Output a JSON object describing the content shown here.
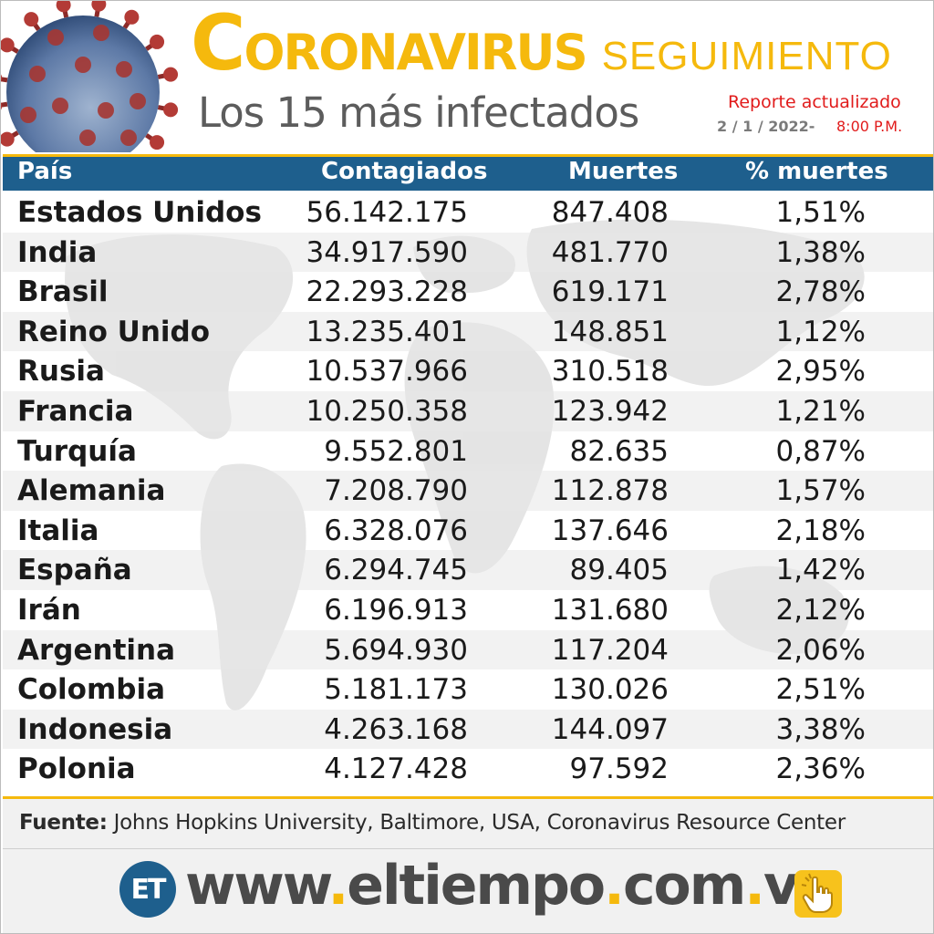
{
  "header": {
    "title_main": "CORONAVIRUS",
    "title_sub": "SEGUIMIENTO",
    "subtitle": "Los 15 más infectados",
    "report_label": "Reporte actualizado",
    "report_date": "2 / 1 / 2022-",
    "report_time": "8:00 P.M."
  },
  "table": {
    "columns": [
      "País",
      "Contagiados",
      "Muertes",
      "% muertes"
    ],
    "rows": [
      {
        "country": "Estados Unidos",
        "infected": "56.142.175",
        "deaths": "847.408",
        "pct": "1,51%"
      },
      {
        "country": "India",
        "infected": "34.917.590",
        "deaths": "481.770",
        "pct": "1,38%"
      },
      {
        "country": "Brasil",
        "infected": "22.293.228",
        "deaths": "619.171",
        "pct": "2,78%"
      },
      {
        "country": "Reino Unido",
        "infected": "13.235.401",
        "deaths": "148.851",
        "pct": "1,12%"
      },
      {
        "country": "Rusia",
        "infected": "10.537.966",
        "deaths": "310.518",
        "pct": "2,95%"
      },
      {
        "country": "Francia",
        "infected": "10.250.358",
        "deaths": "123.942",
        "pct": "1,21%"
      },
      {
        "country": "Turquía",
        "infected": "9.552.801",
        "deaths": "82.635",
        "pct": "0,87%"
      },
      {
        "country": "Alemania",
        "infected": "7.208.790",
        "deaths": "112.878",
        "pct": "1,57%"
      },
      {
        "country": "Italia",
        "infected": "6.328.076",
        "deaths": "137.646",
        "pct": "2,18%"
      },
      {
        "country": "España",
        "infected": "6.294.745",
        "deaths": "89.405",
        "pct": "1,42%"
      },
      {
        "country": "Irán",
        "infected": "6.196.913",
        "deaths": "131.680",
        "pct": "2,12%"
      },
      {
        "country": "Argentina",
        "infected": "5.694.930",
        "deaths": "117.204",
        "pct": "2,06%"
      },
      {
        "country": "Colombia",
        "infected": "5.181.173",
        "deaths": "130.026",
        "pct": "2,51%"
      },
      {
        "country": "Indonesia",
        "infected": "4.263.168",
        "deaths": "144.097",
        "pct": "3,38%"
      },
      {
        "country": "Polonia",
        "infected": "4.127.428",
        "deaths": "97.592",
        "pct": "2,36%"
      }
    ]
  },
  "footer": {
    "source_label": "Fuente:",
    "source_text": " Johns Hopkins University, Baltimore, USA, Coronavirus Resource Center",
    "logo_text": "ET",
    "website_parts": [
      "www",
      ".",
      "eltiempo",
      ".",
      "com",
      ".",
      "ve"
    ]
  },
  "icons": {
    "virus": "coronavirus-illustration",
    "world_map": "world-map-watermark",
    "hand": "pointing-hand-icon"
  },
  "colors": {
    "brand_yellow": "#f5b90d",
    "header_blue": "#1e5f8d",
    "report_red": "#e11b1b",
    "subtitle_gray": "#5c5c5c"
  }
}
